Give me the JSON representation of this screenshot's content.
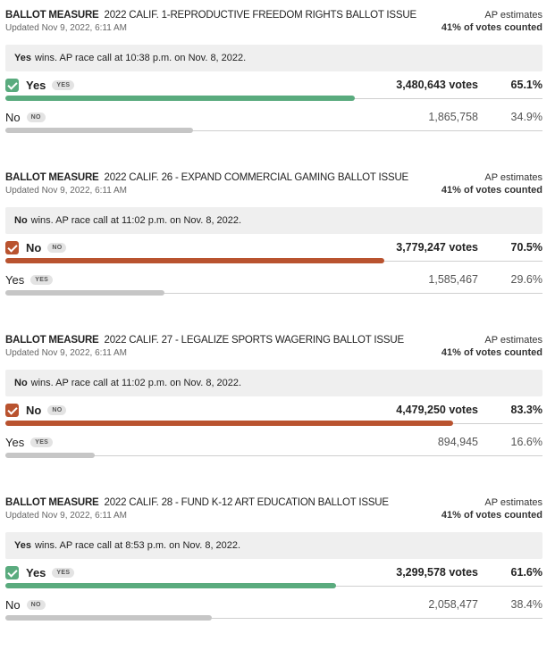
{
  "colors": {
    "yes_win": "#5aab7e",
    "no_win": "#b9532f",
    "loser": "#c6c6c6",
    "banner_bg": "#efefef"
  },
  "measures": [
    {
      "kind": "BALLOT MEASURE",
      "title": "2022 CALIF. 1-REPRODUCTIVE FREEDOM RIGHTS BALLOT ISSUE",
      "updated": "Updated Nov 9, 2022, 6:11 AM",
      "est_label": "AP estimates",
      "est_pct": "41% of votes counted",
      "banner_winner": "Yes",
      "banner_text": "wins. AP race call at 10:38 p.m. on Nov. 8, 2022.",
      "rows": [
        {
          "name": "Yes",
          "badge": "YES",
          "votes": "3,480,643 votes",
          "pct": "65.1%",
          "share": 0.651,
          "winner": true,
          "color": "#5aab7e",
          "check_icon": "checkmark-icon"
        },
        {
          "name": "No",
          "badge": "NO",
          "votes": "1,865,758",
          "pct": "34.9%",
          "share": 0.349,
          "winner": false
        }
      ]
    },
    {
      "kind": "BALLOT MEASURE",
      "title": "2022 CALIF. 26 - EXPAND COMMERCIAL GAMING BALLOT ISSUE",
      "updated": "Updated Nov 9, 2022, 6:11 AM",
      "est_label": "AP estimates",
      "est_pct": "41% of votes counted",
      "banner_winner": "No",
      "banner_text": "wins. AP race call at 11:02 p.m. on Nov. 8, 2022.",
      "rows": [
        {
          "name": "No",
          "badge": "NO",
          "votes": "3,779,247 votes",
          "pct": "70.5%",
          "share": 0.705,
          "winner": true,
          "color": "#b9532f",
          "check_icon": "checkmark-icon"
        },
        {
          "name": "Yes",
          "badge": "YES",
          "votes": "1,585,467",
          "pct": "29.6%",
          "share": 0.296,
          "winner": false
        }
      ]
    },
    {
      "kind": "BALLOT MEASURE",
      "title": "2022 CALIF. 27 - LEGALIZE SPORTS WAGERING BALLOT ISSUE",
      "updated": "Updated Nov 9, 2022, 6:11 AM",
      "est_label": "AP estimates",
      "est_pct": "41% of votes counted",
      "banner_winner": "No",
      "banner_text": "wins. AP race call at 11:02 p.m. on Nov. 8, 2022.",
      "rows": [
        {
          "name": "No",
          "badge": "NO",
          "votes": "4,479,250 votes",
          "pct": "83.3%",
          "share": 0.833,
          "winner": true,
          "color": "#b9532f",
          "check_icon": "checkmark-icon"
        },
        {
          "name": "Yes",
          "badge": "YES",
          "votes": "894,945",
          "pct": "16.6%",
          "share": 0.166,
          "winner": false
        }
      ]
    },
    {
      "kind": "BALLOT MEASURE",
      "title": "2022 CALIF. 28 - FUND K-12 ART EDUCATION BALLOT ISSUE",
      "updated": "Updated Nov 9, 2022, 6:11 AM",
      "est_label": "AP estimates",
      "est_pct": "41% of votes counted",
      "banner_winner": "Yes",
      "banner_text": "wins. AP race call at 8:53 p.m. on Nov. 8, 2022.",
      "rows": [
        {
          "name": "Yes",
          "badge": "YES",
          "votes": "3,299,578 votes",
          "pct": "61.6%",
          "share": 0.616,
          "winner": true,
          "color": "#5aab7e",
          "check_icon": "checkmark-icon"
        },
        {
          "name": "No",
          "badge": "NO",
          "votes": "2,058,477",
          "pct": "38.4%",
          "share": 0.384,
          "winner": false
        }
      ]
    }
  ]
}
